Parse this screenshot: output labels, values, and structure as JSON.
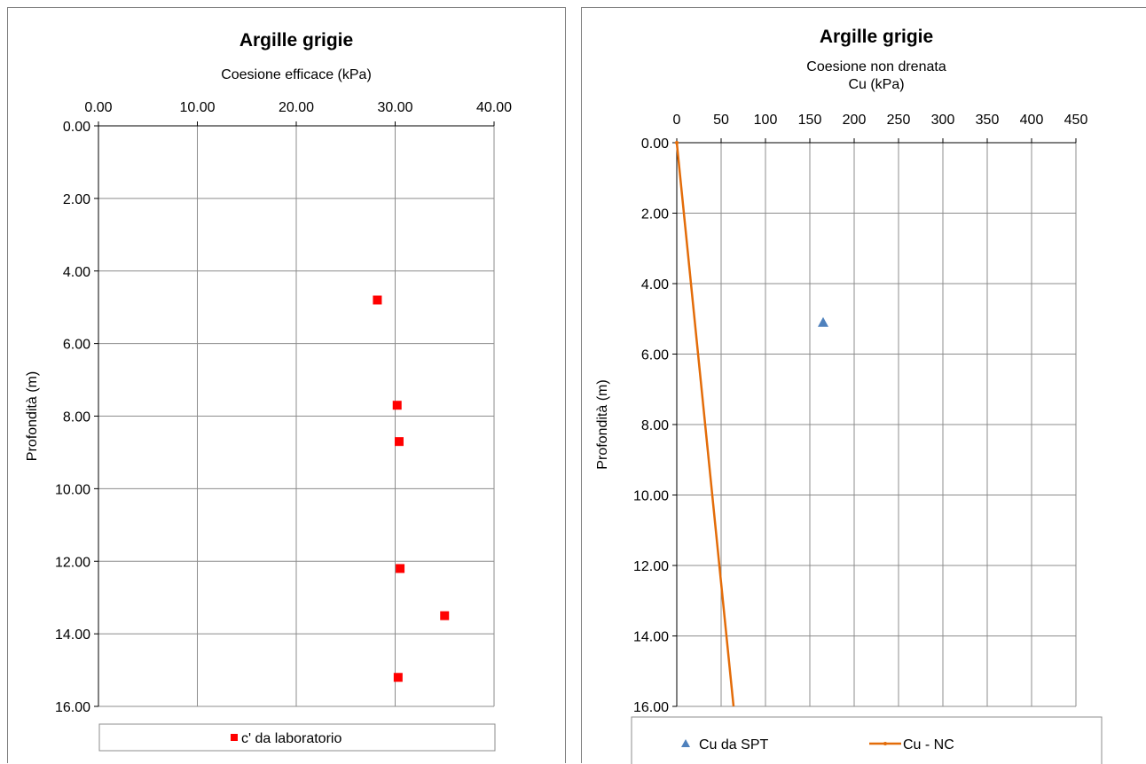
{
  "chart_data": [
    {
      "type": "scatter",
      "title": "Argille grigie",
      "xlabel": "Coesione efficace (kPa)",
      "ylabel": "Profondità (m)",
      "xlim": [
        0,
        40
      ],
      "ylim": [
        0,
        16
      ],
      "y_inverted": true,
      "x_axis_position": "top",
      "grid": true,
      "x_ticks": [
        "0.00",
        "10.00",
        "20.00",
        "30.00",
        "40.00"
      ],
      "y_ticks": [
        "0.00",
        "2.00",
        "4.00",
        "6.00",
        "8.00",
        "10.00",
        "12.00",
        "14.00",
        "16.00"
      ],
      "legend_position": "bottom",
      "series": [
        {
          "name": "c' da laboratorio",
          "marker": "square",
          "color": "#ff0000",
          "points": [
            {
              "x": 28.2,
              "y": 4.8
            },
            {
              "x": 30.2,
              "y": 7.7
            },
            {
              "x": 30.4,
              "y": 8.7
            },
            {
              "x": 30.5,
              "y": 12.2
            },
            {
              "x": 35.0,
              "y": 13.5
            },
            {
              "x": 30.3,
              "y": 15.2
            }
          ]
        }
      ]
    },
    {
      "type": "scatter",
      "title": "Argille grigie",
      "xlabel": [
        "Coesione non drenata",
        "Cu (kPa)"
      ],
      "ylabel": "Profondità (m)",
      "xlim": [
        0,
        450
      ],
      "ylim": [
        0,
        16
      ],
      "y_inverted": true,
      "x_axis_position": "top",
      "grid": true,
      "x_ticks": [
        "0",
        "50",
        "100",
        "150",
        "200",
        "250",
        "300",
        "350",
        "400",
        "450"
      ],
      "y_ticks": [
        "0.00",
        "2.00",
        "4.00",
        "6.00",
        "8.00",
        "10.00",
        "12.00",
        "14.00",
        "16.00"
      ],
      "legend_position": "bottom",
      "series": [
        {
          "name": "Cu da SPT",
          "marker": "triangle",
          "color": "#4f81bd",
          "points": [
            {
              "x": 165,
              "y": 5.1
            }
          ]
        },
        {
          "name": "Cu  - NC",
          "marker": "line",
          "color": "#e36c09",
          "points": [
            {
              "x": 0,
              "y": 0
            },
            {
              "x": 64,
              "y": 16
            }
          ]
        }
      ]
    }
  ]
}
